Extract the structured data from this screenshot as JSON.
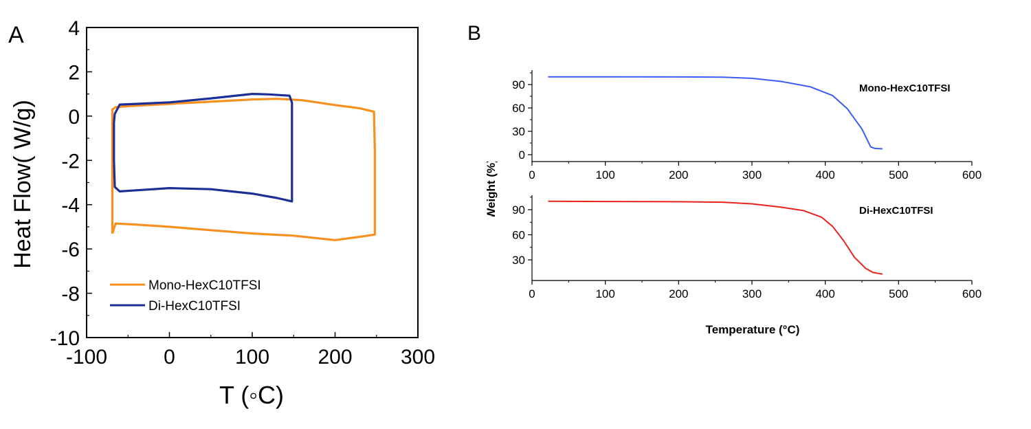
{
  "chart_data": [
    {
      "panel_label": "A",
      "type": "line",
      "title": "",
      "xlabel": "T (◦C)",
      "ylabel": "Heat Flow( W/g)",
      "xlim": [
        -100,
        300
      ],
      "ylim": [
        -10,
        4
      ],
      "x_ticks": [
        -100,
        0,
        100,
        200,
        300
      ],
      "y_ticks": [
        4,
        2,
        0,
        -2,
        -4,
        -6,
        -8,
        -10
      ],
      "legend": {
        "position": "bottom-left",
        "entries": [
          "Mono-HexC10TFSI",
          "Di-HexC10TFSI"
        ]
      },
      "series": [
        {
          "name": "Mono-HexC10TFSI",
          "color": "#f7901e",
          "points": [
            [
              -69,
              -5.3
            ],
            [
              -69,
              -3.5
            ],
            [
              -69,
              -1.5
            ],
            [
              -69,
              0.3
            ],
            [
              -65,
              0.4
            ],
            [
              -50,
              0.45
            ],
            [
              0,
              0.55
            ],
            [
              50,
              0.65
            ],
            [
              100,
              0.75
            ],
            [
              130,
              0.78
            ],
            [
              160,
              0.72
            ],
            [
              200,
              0.5
            ],
            [
              230,
              0.35
            ],
            [
              247,
              0.2
            ],
            [
              248,
              -1.5
            ],
            [
              248,
              -3.5
            ],
            [
              248,
              -5.35
            ],
            [
              230,
              -5.45
            ],
            [
              200,
              -5.6
            ],
            [
              150,
              -5.4
            ],
            [
              100,
              -5.3
            ],
            [
              50,
              -5.15
            ],
            [
              0,
              -5.0
            ],
            [
              -40,
              -4.9
            ],
            [
              -65,
              -4.85
            ],
            [
              -69,
              -5.3
            ]
          ]
        },
        {
          "name": "Di-HexC10TFSI",
          "color": "#1c2f96",
          "points": [
            [
              -67,
              -0.3
            ],
            [
              -66,
              0.1
            ],
            [
              -60,
              0.52
            ],
            [
              -40,
              0.55
            ],
            [
              0,
              0.62
            ],
            [
              50,
              0.8
            ],
            [
              100,
              1.0
            ],
            [
              120,
              0.98
            ],
            [
              145,
              0.92
            ],
            [
              148,
              0.6
            ],
            [
              148,
              -1.0
            ],
            [
              148,
              -2.5
            ],
            [
              148,
              -3.85
            ],
            [
              130,
              -3.7
            ],
            [
              100,
              -3.5
            ],
            [
              50,
              -3.3
            ],
            [
              0,
              -3.25
            ],
            [
              -40,
              -3.35
            ],
            [
              -60,
              -3.4
            ],
            [
              -66,
              -3.2
            ],
            [
              -67,
              -2.0
            ],
            [
              -67,
              -0.3
            ]
          ]
        }
      ]
    },
    {
      "panel_label": "B",
      "type": "line",
      "title": "Mono-HexC10TFSI",
      "xlabel": "",
      "ylabel": "Weight (%)",
      "xlim": [
        0,
        600
      ],
      "ylim": [
        -5,
        110
      ],
      "x_ticks": [
        0,
        100,
        200,
        300,
        400,
        500,
        600
      ],
      "y_ticks": [
        0,
        30,
        60,
        90
      ],
      "series": [
        {
          "name": "Mono-HexC10TFSI",
          "color": "#3a5cf5",
          "points": [
            [
              22,
              100
            ],
            [
              100,
              100
            ],
            [
              200,
              99.8
            ],
            [
              260,
              99.5
            ],
            [
              300,
              98
            ],
            [
              340,
              94
            ],
            [
              380,
              87
            ],
            [
              410,
              76
            ],
            [
              430,
              59
            ],
            [
              450,
              33
            ],
            [
              462,
              10
            ],
            [
              468,
              8
            ],
            [
              478,
              7.5
            ]
          ]
        }
      ]
    },
    {
      "panel_label": "",
      "type": "line",
      "title": "Di-HexC10TFSI",
      "xlabel": "Temperature (°C)",
      "ylabel": "Weight (%)",
      "xlim": [
        0,
        600
      ],
      "ylim": [
        10,
        110
      ],
      "x_ticks": [
        0,
        100,
        200,
        300,
        400,
        500,
        600
      ],
      "y_ticks": [
        30,
        60,
        90
      ],
      "series": [
        {
          "name": "Di-HexC10TFSI",
          "color": "#e8231b",
          "points": [
            [
              22,
              100
            ],
            [
              100,
              99.8
            ],
            [
              200,
              99.5
            ],
            [
              260,
              99
            ],
            [
              300,
              97
            ],
            [
              340,
              93
            ],
            [
              370,
              89
            ],
            [
              395,
              81
            ],
            [
              410,
              70
            ],
            [
              425,
              53
            ],
            [
              440,
              33
            ],
            [
              455,
              20
            ],
            [
              465,
              15
            ],
            [
              478,
              13
            ]
          ]
        }
      ]
    }
  ],
  "panel_b_ylabel_visible": "Weight (%)"
}
